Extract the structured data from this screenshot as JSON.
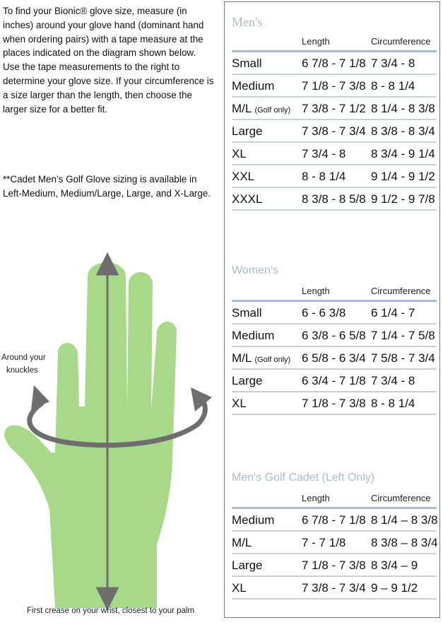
{
  "intro": "To find your Bionic® glove size, measure (in inches) around your glove hand (dominant hand when ordering pairs) with a tape measure at the places indicated on the diagram shown below. Use the tape measurements to the right to determine your glove size. If your circumference is a size larger than the length, then choose the larger size for a better fit.",
  "note": "**Cadet Men’s Golf Glove sizing is available in Left-Medium, Medium/Large, Large, and X-Large.",
  "diagram": {
    "knuckles_label_1": "Around your",
    "knuckles_label_2": "knuckles",
    "wrist_label": "First crease on your wrist, closest to your palm",
    "hand_color": "#a8d98a",
    "arrow_color": "#6e6e6e"
  },
  "tables": [
    {
      "title": "Men's",
      "col_length": "Length",
      "col_circ": "Circumference",
      "rows": [
        {
          "size": "Small",
          "note": "",
          "length": "6 7/8 - 7 1/8",
          "circ": "7 3/4 - 8"
        },
        {
          "size": "Medium",
          "note": "",
          "length": "7 1/8 - 7 3/8",
          "circ": "8 - 8 1/4"
        },
        {
          "size": "M/L",
          "note": "(Golf only)",
          "length": "7 3/8 - 7 1/2",
          "circ": "8 1/4 - 8 3/8"
        },
        {
          "size": "Large",
          "note": "",
          "length": "7 3/8 - 7 3/4",
          "circ": "8 3/8 - 8 3/4"
        },
        {
          "size": "XL",
          "note": "",
          "length": "7 3/4 - 8",
          "circ": "8 3/4 - 9 1/4"
        },
        {
          "size": "XXL",
          "note": "",
          "length": "8 - 8 1/4",
          "circ": "9 1/4 - 9 1/2"
        },
        {
          "size": "XXXL",
          "note": "",
          "length": "8 3/8 - 8 5/8",
          "circ": "9 1/2 - 9 7/8"
        }
      ]
    },
    {
      "title": "Women's",
      "col_length": "Length",
      "col_circ": "Circumference",
      "rows": [
        {
          "size": "Small",
          "note": "",
          "length": "6 - 6 3/8",
          "circ": "6 1/4 - 7"
        },
        {
          "size": "Medium",
          "note": "",
          "length": "6 3/8 - 6 5/8",
          "circ": "7 1/4 - 7 5/8"
        },
        {
          "size": "M/L",
          "note": "(Golf only)",
          "length": "6 5/8 - 6 3/4",
          "circ": "7 5/8 - 7 3/4"
        },
        {
          "size": "Large",
          "note": "",
          "length": "6 3/4 - 7 1/8",
          "circ": "7 3/4 - 8"
        },
        {
          "size": "XL",
          "note": "",
          "length": "7 1/8 - 7 3/8",
          "circ": "8 - 8 1/4"
        }
      ]
    },
    {
      "title": "Men's Golf Cadet (Left Only)",
      "col_length": "Length",
      "col_circ": "Circumference",
      "rows": [
        {
          "size": "Medium",
          "note": "",
          "length": "6 7/8 - 7 1/8",
          "circ": "8 1/4 – 8 3/8"
        },
        {
          "size": "M/L",
          "note": "",
          "length": "7 - 7 1/8",
          "circ": "8 3/8 – 8 3/4"
        },
        {
          "size": "Large",
          "note": "",
          "length": " 7 1/8 - 7 3/8",
          "circ": "8 3/4 – 9"
        },
        {
          "size": "XL",
          "note": "",
          "length": "7 3/8 - 7 3/4",
          "circ": "9 – 9 1/2"
        }
      ]
    }
  ]
}
